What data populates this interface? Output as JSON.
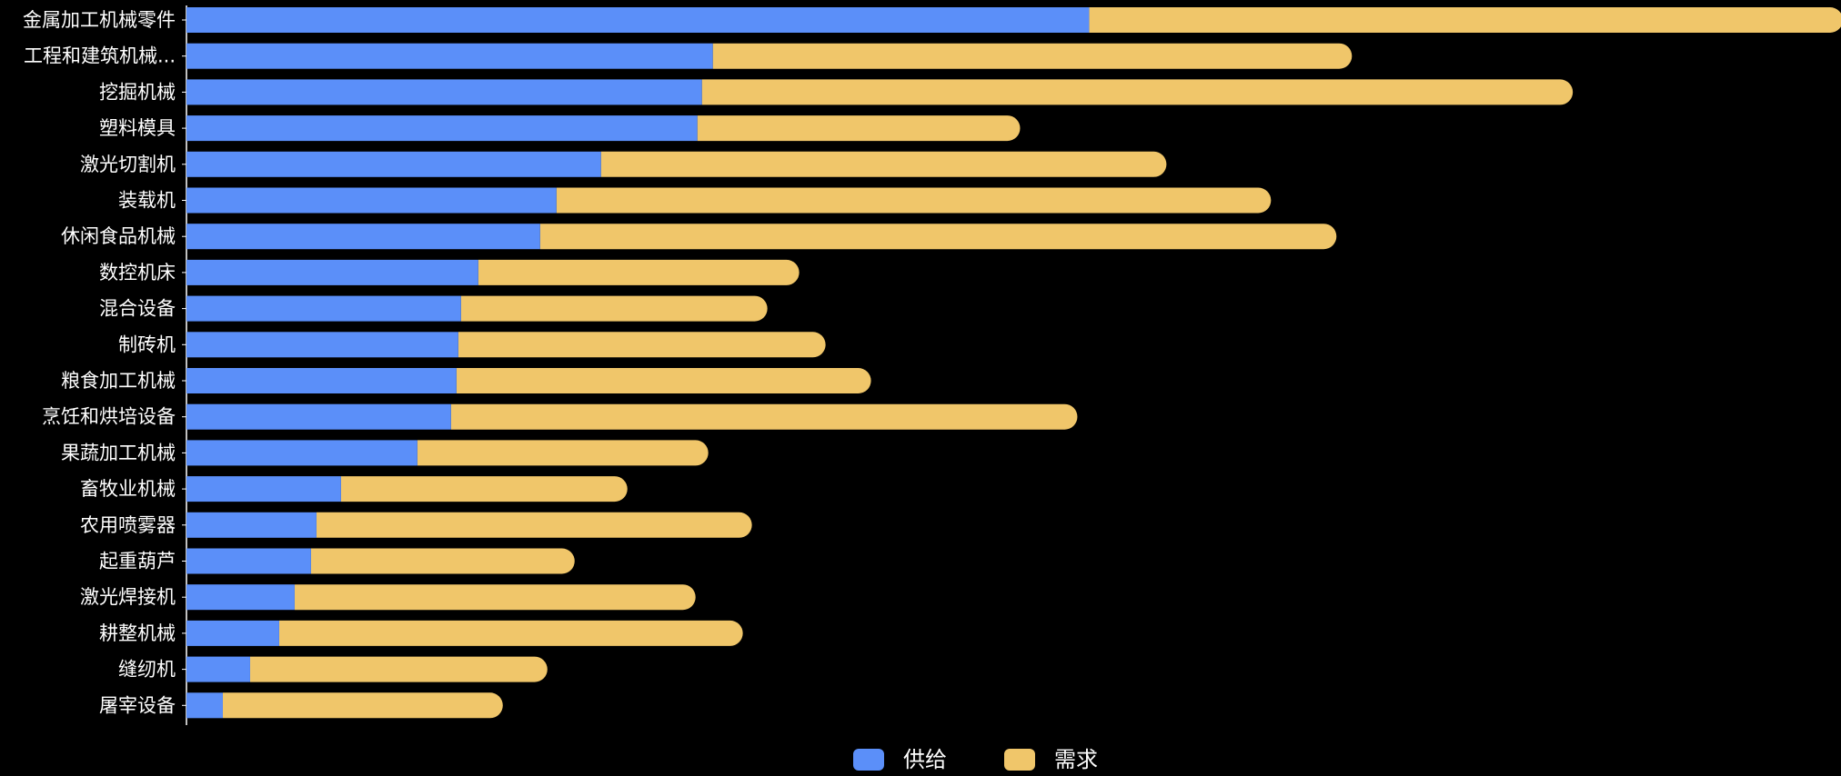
{
  "chart_data": {
    "type": "bar",
    "orientation": "horizontal",
    "stacked": true,
    "background": "#000000",
    "text_color": "#ffffff",
    "categories": [
      "金属加工机械零件",
      "工程和建筑机械...",
      "挖掘机械",
      "塑料模具",
      "激光切割机",
      "装载机",
      "休闲食品机械",
      "数控机床",
      "混合设备",
      "制砖机",
      "粮食加工机械",
      "烹饪和烘培设备",
      "果蔬加工机械",
      "畜牧业机械",
      "农用喷雾器",
      "起重葫芦",
      "激光焊接机",
      "耕整机械",
      "缝纫机",
      "屠宰设备"
    ],
    "series": [
      {
        "name": "供给",
        "color": "#5b8ff9",
        "values": [
          993,
          579,
          567,
          562,
          456,
          407,
          389,
          321,
          302,
          299,
          297,
          291,
          254,
          170,
          143,
          137,
          119,
          102,
          70,
          40
        ]
      },
      {
        "name": "需求",
        "color": "#f0c66a",
        "values": [
          829,
          703,
          958,
          355,
          622,
          786,
          876,
          353,
          337,
          404,
          456,
          689,
          320,
          315,
          479,
          290,
          441,
          510,
          327,
          308
        ]
      }
    ],
    "xlim": [
      0,
      1820
    ],
    "grid": false,
    "x_ticks_shown": false,
    "legend_position": "bottom-center"
  }
}
